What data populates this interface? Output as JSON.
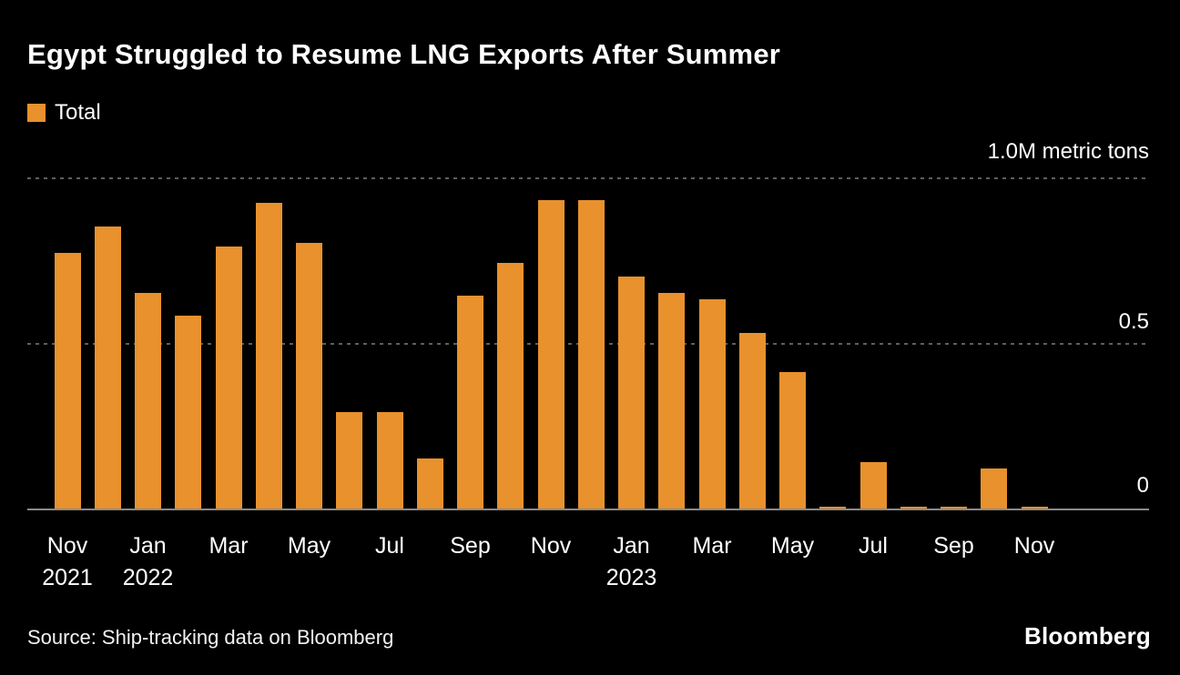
{
  "header": {
    "title": "Egypt Struggled to Resume LNG Exports After Summer"
  },
  "legend": {
    "label": "Total"
  },
  "footer": {
    "source": "Source: Ship-tracking data on Bloomberg",
    "brand": "Bloomberg"
  },
  "colors": {
    "background": "#000000",
    "bar": "#E8912D",
    "text": "#FFFFFF",
    "gridline": "#5E5E5E",
    "axis_line": "#8A8A8A"
  },
  "chart_data": {
    "type": "bar",
    "title": "Egypt Struggled to Resume LNG Exports After Summer",
    "ylabel": "1.0M metric tons",
    "xlabel": "",
    "ylim": [
      0,
      1.0
    ],
    "grid": "horizontal-dashed",
    "legend_position": "top-left",
    "x": [
      "Nov 2021",
      "Dec 2021",
      "Jan 2022",
      "Feb 2022",
      "Mar 2022",
      "Apr 2022",
      "May 2022",
      "Jun 2022",
      "Jul 2022",
      "Aug 2022",
      "Sep 2022",
      "Oct 2022",
      "Nov 2022",
      "Dec 2022",
      "Jan 2023",
      "Feb 2023",
      "Mar 2023",
      "Apr 2023",
      "May 2023",
      "Jun 2023",
      "Jul 2023",
      "Aug 2023",
      "Sep 2023",
      "Oct 2023",
      "Nov 2023"
    ],
    "series": [
      {
        "name": "Total",
        "color": "#E8912D",
        "values": [
          0.77,
          0.85,
          0.65,
          0.58,
          0.79,
          0.92,
          0.8,
          0.29,
          0.29,
          0.15,
          0.64,
          0.74,
          0.93,
          0.93,
          0.7,
          0.65,
          0.63,
          0.53,
          0.41,
          0.005,
          0.14,
          0.005,
          0.005,
          0.12,
          0.005
        ]
      }
    ],
    "yticks": [
      {
        "value": 1.0,
        "label": "1.0M metric tons"
      },
      {
        "value": 0.5,
        "label": "0.5"
      },
      {
        "value": 0,
        "label": "0"
      }
    ],
    "xticks": [
      {
        "index": 0,
        "label": "Nov",
        "year": "2021"
      },
      {
        "index": 2,
        "label": "Jan",
        "year": "2022"
      },
      {
        "index": 4,
        "label": "Mar"
      },
      {
        "index": 6,
        "label": "May"
      },
      {
        "index": 8,
        "label": "Jul"
      },
      {
        "index": 10,
        "label": "Sep"
      },
      {
        "index": 12,
        "label": "Nov"
      },
      {
        "index": 14,
        "label": "Jan",
        "year": "2023"
      },
      {
        "index": 16,
        "label": "Mar"
      },
      {
        "index": 18,
        "label": "May"
      },
      {
        "index": 20,
        "label": "Jul"
      },
      {
        "index": 22,
        "label": "Sep"
      },
      {
        "index": 24,
        "label": "Nov"
      }
    ]
  }
}
